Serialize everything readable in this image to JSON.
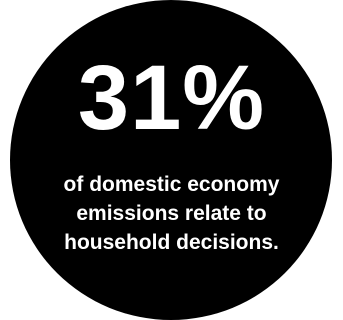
{
  "stat": {
    "value": "31%",
    "caption_lines": [
      "of domestic economy",
      "emissions relate to",
      "household decisions."
    ]
  },
  "colors": {
    "circle": "#000000",
    "text": "#ffffff",
    "background": "#ffffff"
  }
}
